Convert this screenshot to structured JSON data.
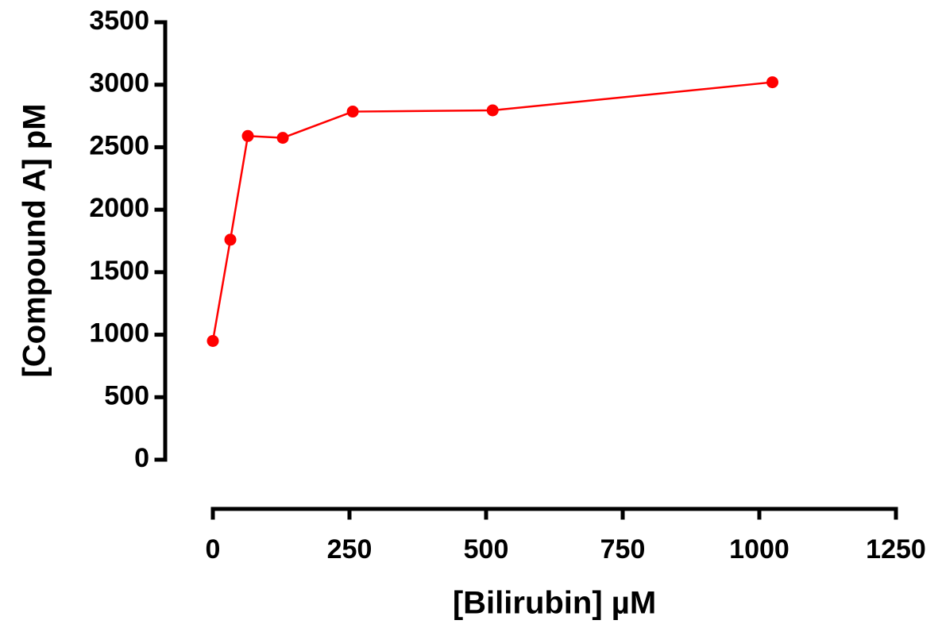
{
  "chart_data": {
    "type": "line",
    "xlabel": "[Bilirubin] µM",
    "ylabel": "[Compound A] pM",
    "x": [
      0,
      32,
      64,
      128,
      256,
      512,
      1024
    ],
    "series": [
      {
        "color": "#ff0000",
        "values": [
          950,
          1760,
          2590,
          2575,
          2785,
          2795,
          3020
        ]
      }
    ],
    "xlim": [
      0,
      1250
    ],
    "xticks": [
      0,
      250,
      500,
      750,
      1000,
      1250
    ],
    "ylim": [
      0,
      3500
    ],
    "yticks": [
      0,
      500,
      1000,
      1500,
      2000,
      2500,
      3000,
      3500
    ],
    "grid": false
  }
}
